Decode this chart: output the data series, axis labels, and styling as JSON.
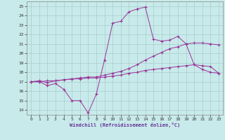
{
  "xlabel": "Windchill (Refroidissement éolien,°C)",
  "xlim": [
    -0.5,
    23.5
  ],
  "ylim": [
    13.5,
    25.5
  ],
  "yticks": [
    14,
    15,
    16,
    17,
    18,
    19,
    20,
    21,
    22,
    23,
    24,
    25
  ],
  "xticks": [
    0,
    1,
    2,
    3,
    4,
    5,
    6,
    7,
    8,
    9,
    10,
    11,
    12,
    13,
    14,
    15,
    16,
    17,
    18,
    19,
    20,
    21,
    22,
    23
  ],
  "bg_color": "#c8eaea",
  "grid_color": "#a8cccc",
  "line_color": "#993399",
  "lines": [
    {
      "x": [
        0,
        1,
        2,
        3,
        4,
        5,
        6,
        7,
        8,
        9,
        10,
        11,
        12,
        13,
        14,
        15,
        16,
        17,
        18,
        19,
        20,
        21,
        22,
        23
      ],
      "y": [
        17.0,
        17.0,
        16.6,
        16.8,
        16.2,
        15.0,
        15.0,
        13.7,
        15.7,
        19.3,
        23.2,
        23.4,
        24.4,
        24.7,
        24.9,
        21.5,
        21.3,
        21.4,
        21.8,
        21.0,
        18.8,
        18.3,
        18.0,
        17.9
      ]
    },
    {
      "x": [
        0,
        1,
        2,
        3,
        4,
        5,
        6,
        7,
        8,
        9,
        10,
        11,
        12,
        13,
        14,
        15,
        16,
        17,
        18,
        19,
        20,
        21,
        22,
        23
      ],
      "y": [
        17.0,
        17.1,
        16.9,
        17.1,
        17.2,
        17.3,
        17.4,
        17.5,
        17.5,
        17.7,
        17.9,
        18.1,
        18.4,
        18.8,
        19.3,
        19.7,
        20.1,
        20.5,
        20.7,
        21.0,
        21.1,
        21.1,
        21.0,
        20.9
      ]
    },
    {
      "x": [
        0,
        1,
        2,
        3,
        4,
        5,
        6,
        7,
        8,
        9,
        10,
        11,
        12,
        13,
        14,
        15,
        16,
        17,
        18,
        19,
        20,
        21,
        22,
        23
      ],
      "y": [
        17.0,
        17.0,
        17.1,
        17.1,
        17.2,
        17.3,
        17.3,
        17.4,
        17.4,
        17.5,
        17.6,
        17.7,
        17.9,
        18.0,
        18.2,
        18.3,
        18.4,
        18.5,
        18.6,
        18.7,
        18.8,
        18.7,
        18.6,
        17.9
      ]
    }
  ]
}
